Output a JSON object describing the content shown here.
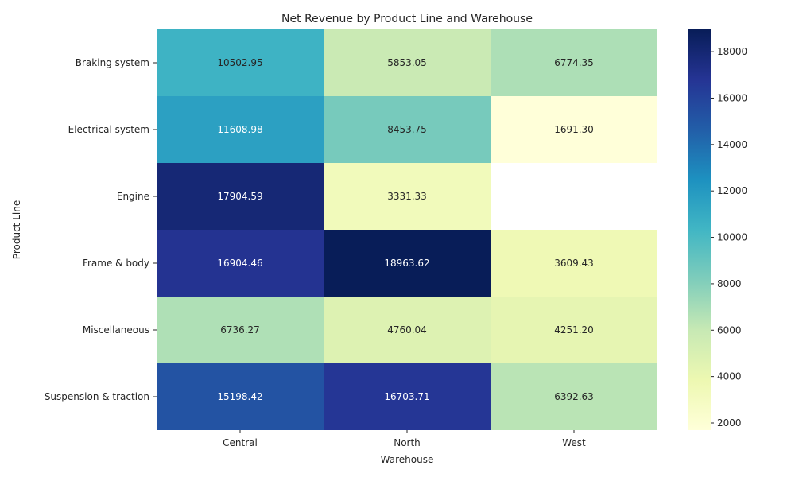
{
  "chart_data": {
    "type": "heatmap",
    "title": "Net Revenue by Product Line and Warehouse",
    "xlabel": "Warehouse",
    "ylabel": "Product Line",
    "x_categories": [
      "Central",
      "North",
      "West"
    ],
    "y_categories": [
      "Braking system",
      "Electrical system",
      "Engine",
      "Frame & body",
      "Miscellaneous",
      "Suspension & traction"
    ],
    "values": [
      [
        10502.95,
        5853.05,
        6774.35
      ],
      [
        11608.98,
        8453.75,
        1691.3
      ],
      [
        17904.59,
        3331.33,
        null
      ],
      [
        16904.46,
        18963.62,
        3609.43
      ],
      [
        6736.27,
        4760.04,
        4251.2
      ],
      [
        15198.42,
        16703.71,
        6392.63
      ]
    ],
    "labels": [
      [
        "10502.95",
        "5853.05",
        "6774.35"
      ],
      [
        "11608.98",
        "8453.75",
        "1691.30"
      ],
      [
        "17904.59",
        "3331.33",
        ""
      ],
      [
        "16904.46",
        "18963.62",
        "3609.43"
      ],
      [
        "6736.27",
        "4760.04",
        "4251.20"
      ],
      [
        "15198.42",
        "16703.71",
        "6392.63"
      ]
    ],
    "colormap": "YlGnBu",
    "color_range": [
      1691.3,
      18963.62
    ],
    "colorbar_ticks": [
      "2000",
      "4000",
      "6000",
      "8000",
      "10000",
      "12000",
      "14000",
      "16000",
      "18000"
    ],
    "colorbar_tick_values": [
      2000,
      4000,
      6000,
      8000,
      10000,
      12000,
      14000,
      16000,
      18000
    ]
  }
}
